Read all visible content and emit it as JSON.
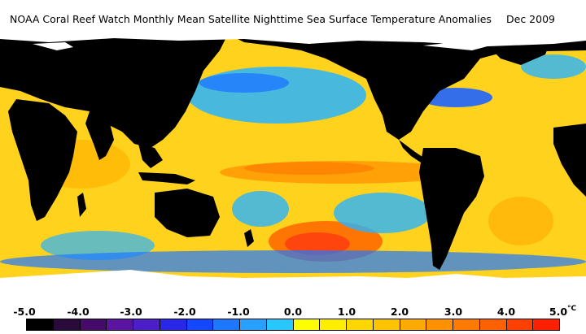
{
  "title": {
    "text": "NOAA Coral Reef Watch Monthly Mean Satellite Nighttime Sea Surface Temperature Anomalies",
    "date": "Dec 2009"
  },
  "legend": {
    "ticks": [
      "-5.0",
      "-4.0",
      "-3.0",
      "-2.0",
      "-1.0",
      "0.0",
      "1.0",
      "2.0",
      "3.0",
      "4.0",
      "5.0"
    ],
    "unit": "°C",
    "colors": [
      "#000000",
      "#2a0a3a",
      "#450a6a",
      "#5a14a0",
      "#4b1ec8",
      "#2a28e8",
      "#1448ff",
      "#1e78ff",
      "#28a0ff",
      "#28c8ff",
      "#ffff00",
      "#ffee00",
      "#ffd700",
      "#ffc400",
      "#ffaa00",
      "#ff9000",
      "#ff7a00",
      "#ff6000",
      "#ff4000",
      "#ff2000"
    ]
  },
  "map": {
    "ocean_colors": {
      "warm_base": "#ffd21e",
      "hot": "#ff7a00",
      "very_hot": "#ff4a10",
      "cool": "#28b4ff",
      "cold": "#1e64ff",
      "very_cold": "#5a1ed2",
      "land": "#000000",
      "ice": "#ffffff"
    }
  }
}
